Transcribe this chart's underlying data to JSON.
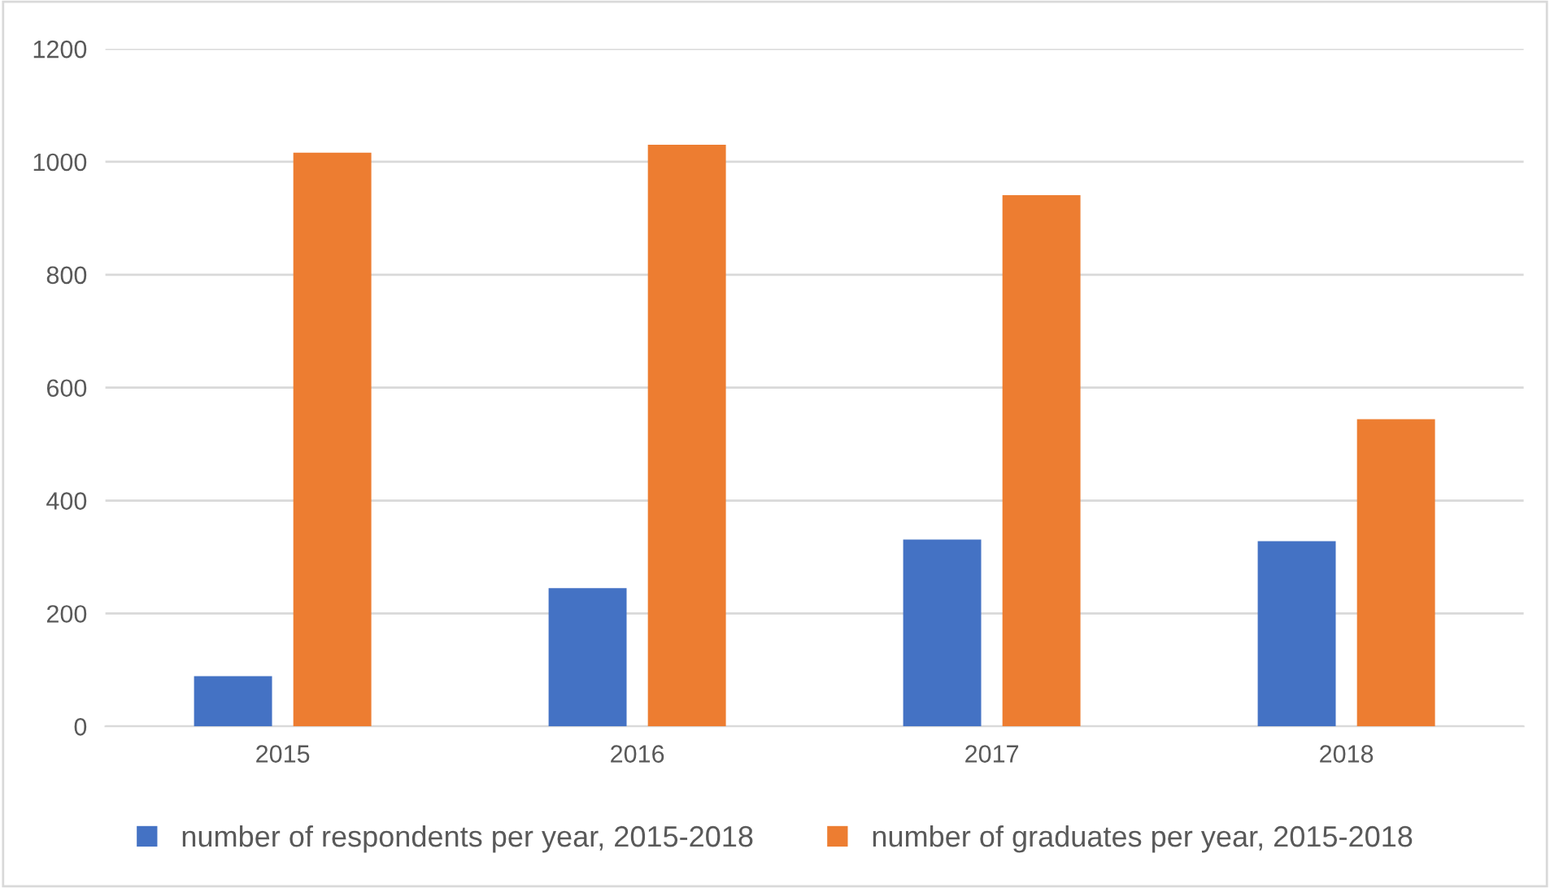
{
  "chart_data": {
    "type": "bar",
    "categories": [
      "2015",
      "2016",
      "2017",
      "2018"
    ],
    "series": [
      {
        "name": "number of respondents per year, 2015-2018",
        "color": "#4472c4",
        "values": [
          89,
          245,
          331,
          328
        ]
      },
      {
        "name": "number of graduates per year, 2015-2018",
        "color": "#ed7d31",
        "values": [
          1016,
          1030,
          941,
          544
        ]
      }
    ],
    "ylim": [
      0,
      1200
    ],
    "yticks": [
      0,
      200,
      400,
      600,
      800,
      1000,
      1200
    ],
    "grid": "y",
    "legend": "bottom"
  }
}
